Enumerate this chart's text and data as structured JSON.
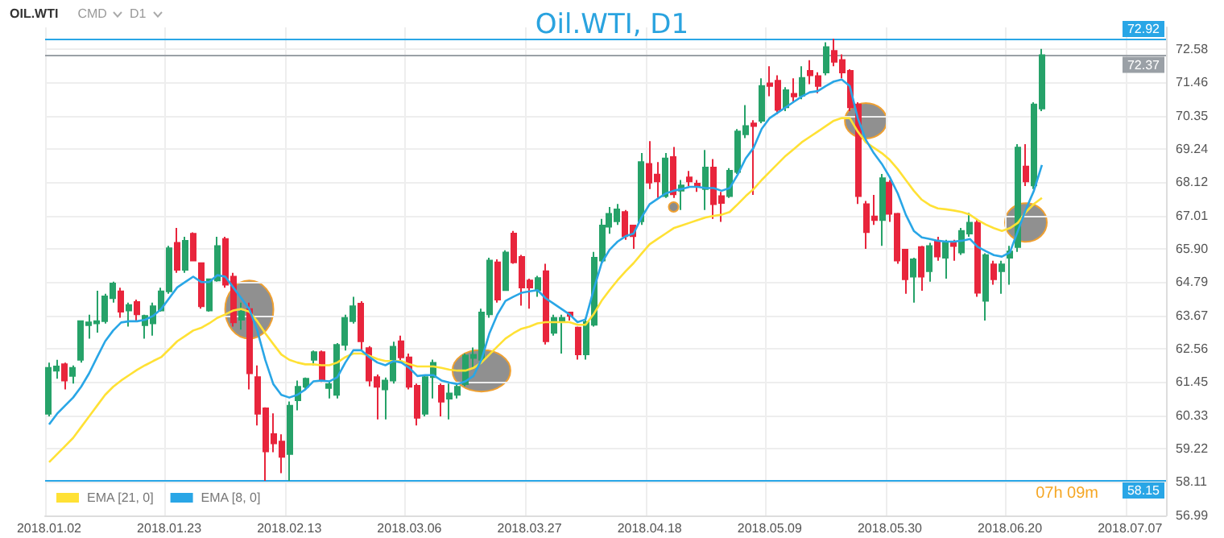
{
  "chart_data": {
    "type": "candlestick",
    "title": "Oil.WTI, D1",
    "categories": [
      "2018.01.02",
      null,
      null,
      null,
      null,
      null,
      null,
      null,
      null,
      null,
      null,
      null,
      null,
      null,
      null,
      "2018.01.23",
      null,
      null,
      null,
      null,
      null,
      null,
      null,
      null,
      null,
      null,
      null,
      null,
      null,
      null,
      "2018.02.13",
      null,
      null,
      null,
      null,
      null,
      null,
      null,
      null,
      null,
      null,
      null,
      null,
      null,
      null,
      "2018.03.06",
      null,
      null,
      null,
      null,
      null,
      null,
      null,
      null,
      null,
      null,
      null,
      null,
      null,
      null,
      "2018.03.27",
      null,
      null,
      null,
      null,
      null,
      null,
      null,
      null,
      null,
      null,
      null,
      null,
      null,
      null,
      "2018.04.18",
      null,
      null,
      null,
      null,
      null,
      null,
      null,
      null,
      null,
      null,
      null,
      null,
      null,
      null,
      "2018.05.09",
      null,
      null,
      null,
      null,
      null,
      null,
      null,
      null,
      null,
      null,
      null,
      null,
      null,
      null,
      "2018.05.30",
      null,
      null,
      null,
      null,
      null,
      null,
      null,
      null,
      null,
      null,
      null,
      null,
      null,
      null,
      "2018.06.20",
      null,
      null,
      null,
      null,
      null,
      null,
      null,
      null,
      null,
      null,
      null,
      null,
      null,
      null,
      "2018.07.07",
      null,
      null,
      null,
      null
    ],
    "ohlc": [
      [
        60.39,
        62.1,
        60.3,
        61.92
      ],
      [
        61.83,
        62.19,
        61.56,
        61.97
      ],
      [
        62.04,
        62.1,
        61.2,
        61.5
      ],
      [
        61.65,
        62.0,
        61.4,
        61.92
      ],
      [
        62.19,
        63.5,
        62.1,
        63.48
      ],
      [
        63.35,
        63.7,
        62.9,
        63.44
      ],
      [
        63.41,
        64.5,
        63.1,
        63.48
      ],
      [
        63.48,
        64.4,
        63.4,
        64.31
      ],
      [
        64.25,
        64.8,
        64.1,
        64.74
      ],
      [
        64.48,
        64.6,
        63.6,
        63.8
      ],
      [
        63.84,
        64.1,
        63.3,
        64.02
      ],
      [
        64.12,
        64.2,
        63.5,
        63.71
      ],
      [
        63.35,
        63.7,
        62.9,
        63.66
      ],
      [
        63.41,
        64.1,
        63.0,
        63.98
      ],
      [
        63.84,
        64.6,
        63.8,
        64.48
      ],
      [
        64.48,
        66.0,
        64.4,
        65.92
      ],
      [
        66.1,
        66.6,
        65.1,
        65.2
      ],
      [
        65.2,
        66.3,
        65.1,
        66.17
      ],
      [
        66.4,
        66.45,
        65.5,
        65.51
      ],
      [
        65.42,
        65.45,
        63.9,
        63.98
      ],
      [
        63.84,
        64.9,
        63.8,
        64.88
      ],
      [
        64.84,
        66.3,
        64.8,
        65.99
      ],
      [
        66.23,
        66.3,
        64.6,
        64.7
      ],
      [
        64.97,
        65.1,
        63.3,
        63.44
      ],
      [
        63.53,
        64.1,
        63.2,
        63.8
      ],
      [
        63.89,
        64.1,
        61.2,
        61.74
      ],
      [
        61.61,
        62.0,
        60.0,
        60.39
      ],
      [
        60.57,
        60.6,
        58.15,
        59.13
      ],
      [
        59.71,
        60.4,
        59.1,
        59.4
      ],
      [
        59.46,
        59.7,
        58.4,
        58.95
      ],
      [
        59.04,
        60.8,
        58.15,
        60.66
      ],
      [
        60.84,
        61.5,
        60.5,
        61.29
      ],
      [
        61.29,
        61.6,
        61.2,
        61.56
      ],
      [
        62.19,
        62.5,
        62.0,
        62.45
      ],
      [
        62.45,
        62.5,
        61.45,
        61.5
      ],
      [
        61.25,
        61.5,
        60.9,
        61.38
      ],
      [
        61.02,
        62.75,
        60.9,
        62.69
      ],
      [
        62.69,
        63.7,
        62.5,
        63.59
      ],
      [
        63.48,
        64.3,
        63.4,
        63.98
      ],
      [
        64.07,
        64.15,
        62.5,
        62.81
      ],
      [
        62.58,
        62.65,
        61.3,
        61.5
      ],
      [
        61.61,
        61.7,
        60.2,
        61.29
      ],
      [
        61.2,
        61.6,
        60.2,
        61.5
      ],
      [
        61.5,
        62.8,
        61.4,
        62.63
      ],
      [
        62.81,
        63.0,
        62.1,
        62.27
      ],
      [
        62.27,
        62.4,
        61.2,
        61.29
      ],
      [
        61.32,
        61.4,
        60.0,
        60.25
      ],
      [
        60.39,
        61.7,
        60.3,
        61.61
      ],
      [
        61.61,
        62.2,
        60.9,
        62.09
      ],
      [
        61.32,
        61.4,
        60.3,
        60.79
      ],
      [
        60.89,
        61.4,
        60.2,
        61.07
      ],
      [
        61.02,
        61.4,
        60.9,
        61.29
      ],
      [
        61.38,
        62.4,
        61.3,
        62.33
      ],
      [
        62.25,
        62.6,
        61.9,
        62.36
      ],
      [
        62.19,
        63.9,
        62.1,
        63.77
      ],
      [
        63.71,
        65.6,
        63.6,
        65.51
      ],
      [
        65.45,
        65.55,
        64.1,
        64.2
      ],
      [
        64.52,
        65.85,
        64.5,
        65.78
      ],
      [
        66.41,
        66.5,
        65.4,
        65.45
      ],
      [
        65.63,
        65.7,
        64.0,
        64.61
      ],
      [
        64.84,
        64.9,
        63.9,
        64.61
      ],
      [
        64.52,
        65.0,
        64.3,
        64.92
      ],
      [
        65.15,
        65.4,
        62.7,
        62.81
      ],
      [
        63.09,
        63.7,
        63.0,
        63.59
      ],
      [
        63.5,
        63.7,
        62.4,
        63.59
      ],
      [
        63.77,
        63.8,
        63.5,
        63.66
      ],
      [
        63.27,
        63.3,
        62.2,
        62.37
      ],
      [
        62.37,
        63.6,
        62.2,
        63.45
      ],
      [
        63.36,
        65.8,
        63.3,
        65.6
      ],
      [
        65.51,
        66.9,
        65.4,
        66.68
      ],
      [
        66.64,
        67.3,
        66.4,
        67.07
      ],
      [
        66.82,
        67.4,
        66.7,
        67.22
      ],
      [
        67.13,
        67.2,
        66.2,
        66.32
      ],
      [
        66.68,
        66.7,
        65.9,
        66.32
      ],
      [
        66.82,
        69.1,
        66.7,
        68.8
      ],
      [
        68.74,
        69.5,
        67.9,
        68.11
      ],
      [
        68.38,
        68.8,
        67.6,
        68.15
      ],
      [
        67.66,
        69.1,
        67.6,
        68.92
      ],
      [
        68.97,
        69.3,
        67.6,
        67.72
      ],
      [
        67.84,
        68.2,
        67.2,
        68.02
      ],
      [
        68.29,
        68.5,
        68.0,
        68.15
      ],
      [
        68.08,
        68.2,
        67.8,
        67.97
      ],
      [
        67.9,
        69.2,
        67.2,
        68.62
      ],
      [
        68.62,
        68.9,
        66.9,
        67.39
      ],
      [
        67.66,
        67.8,
        66.8,
        67.43
      ],
      [
        67.66,
        68.6,
        67.6,
        68.51
      ],
      [
        68.47,
        69.9,
        68.4,
        69.82
      ],
      [
        69.73,
        70.7,
        69.6,
        70.0
      ],
      [
        70.09,
        70.2,
        67.7,
        70.0
      ],
      [
        70.18,
        71.6,
        70.1,
        71.34
      ],
      [
        71.43,
        72.0,
        71.0,
        71.34
      ],
      [
        71.52,
        71.7,
        70.4,
        70.54
      ],
      [
        70.63,
        71.3,
        70.5,
        71.2
      ],
      [
        71.08,
        71.6,
        70.8,
        70.99
      ],
      [
        71.02,
        72.0,
        70.9,
        71.61
      ],
      [
        71.85,
        72.2,
        71.4,
        71.7
      ],
      [
        71.67,
        71.8,
        71.1,
        71.34
      ],
      [
        71.79,
        72.8,
        71.7,
        72.64
      ],
      [
        72.51,
        72.92,
        72.0,
        72.15
      ],
      [
        72.21,
        72.4,
        71.6,
        71.79
      ],
      [
        71.85,
        71.9,
        70.5,
        70.63
      ],
      [
        70.72,
        70.8,
        67.4,
        67.66
      ],
      [
        67.39,
        67.5,
        65.9,
        66.46
      ],
      [
        66.98,
        67.7,
        66.7,
        66.86
      ],
      [
        66.86,
        68.4,
        66.0,
        68.26
      ],
      [
        68.11,
        68.2,
        66.8,
        67.07
      ],
      [
        67.07,
        67.1,
        65.4,
        65.51
      ],
      [
        65.87,
        65.9,
        64.4,
        64.88
      ],
      [
        64.97,
        65.6,
        64.1,
        65.55
      ],
      [
        65.96,
        66.0,
        64.5,
        64.97
      ],
      [
        65.15,
        66.1,
        64.8,
        65.99
      ],
      [
        66.14,
        66.3,
        65.5,
        65.64
      ],
      [
        65.6,
        66.2,
        64.9,
        66.1
      ],
      [
        66.1,
        66.2,
        65.5,
        65.99
      ],
      [
        65.78,
        66.6,
        65.7,
        66.5
      ],
      [
        66.41,
        67.1,
        66.3,
        66.77
      ],
      [
        66.77,
        66.9,
        64.3,
        64.43
      ],
      [
        64.16,
        65.75,
        63.5,
        65.69
      ],
      [
        65.38,
        65.5,
        64.7,
        64.88
      ],
      [
        65.15,
        65.5,
        64.4,
        65.38
      ],
      [
        65.6,
        66.0,
        64.7,
        65.81
      ],
      [
        65.96,
        69.4,
        65.8,
        69.28
      ],
      [
        68.65,
        69.4,
        68.0,
        68.15
      ],
      [
        68.02,
        70.8,
        67.9,
        70.72
      ],
      [
        70.59,
        72.58,
        70.5,
        72.37
      ],
      null,
      null,
      null,
      null,
      null,
      null,
      null,
      null,
      null,
      null,
      null,
      null,
      null,
      null,
      null
    ],
    "colors": [
      "#26a269",
      "#26a269",
      "#e8253c",
      "#26a269",
      "#26a269",
      "#26a269",
      "#26a269",
      "#26a269",
      "#26a269",
      "#e8253c",
      "#26a269",
      "#e8253c",
      "#26a269",
      "#26a269",
      "#26a269",
      "#26a269",
      "#e8253c",
      "#26a269",
      "#e8253c",
      "#e8253c",
      "#26a269",
      "#26a269",
      "#e8253c",
      "#e8253c",
      "#26a269",
      "#e8253c",
      "#e8253c",
      "#e8253c",
      "#e8253c",
      "#e8253c",
      "#26a269",
      "#26a269",
      "#26a269",
      "#26a269",
      "#e8253c",
      "#26a269",
      "#26a269",
      "#26a269",
      "#26a269",
      "#e8253c",
      "#e8253c",
      "#e8253c",
      "#26a269",
      "#26a269",
      "#e8253c",
      "#e8253c",
      "#e8253c",
      "#26a269",
      "#26a269",
      "#e8253c",
      "#26a269",
      "#26a269",
      "#26a269",
      "#26a269",
      "#26a269",
      "#26a269",
      "#e8253c",
      "#26a269",
      "#e8253c",
      "#e8253c",
      "#e8253c",
      "#26a269",
      "#e8253c",
      "#26a269",
      "#26a269",
      "#e8253c",
      "#e8253c",
      "#26a269",
      "#26a269",
      "#26a269",
      "#26a269",
      "#26a269",
      "#e8253c",
      "#e8253c",
      "#26a269",
      "#e8253c",
      "#e8253c",
      "#26a269",
      "#e8253c",
      "#26a269",
      "#e8253c",
      "#e8253c",
      "#26a269",
      "#e8253c",
      "#e8253c",
      "#26a269",
      "#26a269",
      "#26a269",
      "#e8253c",
      "#26a269",
      "#e8253c",
      "#e8253c",
      "#26a269",
      "#e8253c",
      "#26a269",
      "#e8253c",
      "#e8253c",
      "#26a269",
      "#e8253c",
      "#e8253c",
      "#e8253c",
      "#e8253c",
      "#e8253c",
      "#e8253c",
      "#26a269",
      "#e8253c",
      "#e8253c",
      "#e8253c",
      "#26a269",
      "#e8253c",
      "#26a269",
      "#e8253c",
      "#26a269",
      "#e8253c",
      "#26a269",
      "#26a269",
      "#e8253c",
      "#26a269",
      "#e8253c",
      "#26a269",
      "#26a269",
      "#26a269",
      "#e8253c",
      "#26a269",
      "#26a269",
      null,
      null,
      null,
      null,
      null,
      null,
      null,
      null,
      null,
      null,
      null,
      null,
      null,
      null,
      null
    ],
    "series": [
      {
        "name": "EMA [21, 0]",
        "type": "line",
        "color": "#ffe135",
        "values": [
          58.77,
          59.04,
          59.31,
          59.58,
          59.94,
          60.3,
          60.66,
          61.02,
          61.29,
          61.5,
          61.68,
          61.86,
          62.01,
          62.15,
          62.28,
          62.54,
          62.81,
          62.99,
          63.17,
          63.26,
          63.41,
          63.59,
          63.71,
          63.84,
          63.89,
          63.8,
          63.48,
          63.08,
          62.72,
          62.37,
          62.19,
          62.1,
          62.04,
          62.04,
          62.01,
          62.01,
          62.1,
          62.28,
          62.4,
          62.4,
          62.33,
          62.22,
          62.15,
          62.15,
          62.15,
          62.04,
          61.97,
          61.97,
          61.97,
          61.92,
          61.86,
          61.83,
          61.83,
          61.92,
          62.1,
          62.37,
          62.64,
          62.9,
          63.08,
          63.23,
          63.3,
          63.41,
          63.45,
          63.45,
          63.45,
          63.45,
          63.36,
          63.36,
          63.71,
          64.16,
          64.52,
          64.85,
          65.15,
          65.42,
          65.74,
          66.05,
          66.23,
          66.41,
          66.59,
          66.68,
          66.77,
          66.86,
          66.95,
          67.0,
          67.04,
          67.13,
          67.39,
          67.66,
          67.9,
          68.2,
          68.47,
          68.74,
          69.01,
          69.23,
          69.46,
          69.64,
          69.82,
          70.0,
          70.18,
          70.27,
          70.27,
          69.82,
          69.46,
          69.28,
          69.1,
          68.87,
          68.56,
          68.2,
          67.84,
          67.54,
          67.36,
          67.25,
          67.22,
          67.18,
          67.13,
          67.04,
          66.86,
          66.71,
          66.59,
          66.5,
          66.59,
          66.77,
          67.13,
          67.4,
          67.6,
          null,
          null,
          null,
          null,
          null,
          null,
          null,
          null,
          null,
          null,
          null,
          null,
          null,
          null,
          null
        ]
      },
      {
        "name": "EMA [8, 0]",
        "type": "line",
        "color": "#29a6e6",
        "values": [
          60.03,
          60.39,
          60.66,
          60.93,
          61.29,
          61.74,
          62.28,
          62.81,
          63.17,
          63.44,
          63.48,
          63.48,
          63.53,
          63.66,
          63.89,
          64.25,
          64.61,
          64.79,
          64.97,
          64.79,
          64.79,
          65.02,
          64.97,
          64.61,
          64.25,
          63.89,
          63.17,
          62.19,
          61.38,
          61.02,
          60.93,
          61.02,
          61.2,
          61.47,
          61.5,
          61.47,
          61.61,
          62.1,
          62.51,
          62.51,
          62.28,
          62.1,
          62.01,
          62.15,
          62.1,
          61.92,
          61.65,
          61.68,
          61.68,
          61.5,
          61.43,
          61.38,
          61.47,
          61.65,
          62.19,
          63.08,
          63.71,
          64.16,
          64.3,
          64.43,
          64.48,
          64.52,
          64.25,
          64.07,
          63.89,
          63.71,
          63.45,
          63.54,
          64.52,
          65.42,
          65.87,
          66.14,
          66.32,
          66.41,
          66.95,
          67.39,
          67.57,
          67.75,
          67.84,
          67.9,
          67.97,
          67.97,
          67.93,
          67.93,
          67.84,
          67.93,
          68.38,
          68.92,
          69.28,
          69.91,
          70.27,
          70.45,
          70.63,
          70.81,
          70.99,
          71.13,
          71.17,
          71.34,
          71.49,
          71.56,
          71.34,
          70.27,
          69.55,
          69.1,
          68.74,
          68.29,
          67.75,
          67.04,
          66.5,
          66.28,
          66.23,
          66.17,
          66.14,
          66.14,
          66.17,
          66.23,
          65.96,
          65.82,
          65.69,
          65.64,
          65.78,
          66.5,
          67.22,
          67.84,
          68.7,
          null,
          null,
          null,
          null,
          null,
          null,
          null,
          null,
          null,
          null,
          null,
          null,
          null,
          null,
          null
        ]
      }
    ],
    "ylim": [
      56.99,
      73.3
    ],
    "yticks": [
      56.99,
      58.11,
      59.22,
      60.33,
      61.45,
      62.56,
      63.67,
      64.79,
      {
        "value": 65.9,
        "label": "65.90"
      },
      67.01,
      68.12,
      69.24,
      70.35,
      71.46,
      72.58
    ],
    "ref_lines": [
      {
        "axis": "y",
        "value": 72.92,
        "label": "72.92",
        "color": "#29a6e6"
      },
      {
        "axis": "y",
        "value": 72.37,
        "label": "72.37",
        "color": "#9aa0a6"
      },
      {
        "axis": "y",
        "value": 58.15,
        "label": "58.15",
        "color": "#29a6e6"
      }
    ],
    "annotations": [
      "OIL.WTI",
      "CMD",
      "D1",
      "07h 09m"
    ],
    "grid": true,
    "legend": "bottom left",
    "marker": "none"
  }
}
